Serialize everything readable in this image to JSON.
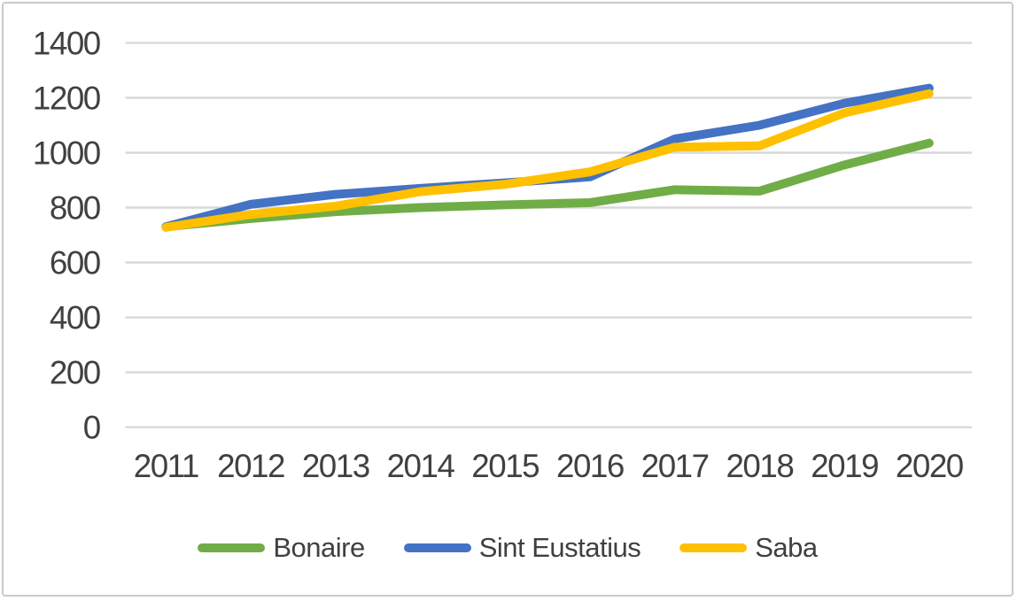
{
  "chart_data": {
    "type": "line",
    "title": "",
    "xlabel": "",
    "ylabel": "",
    "categories": [
      "2011",
      "2012",
      "2013",
      "2014",
      "2015",
      "2016",
      "2017",
      "2018",
      "2019",
      "2020"
    ],
    "series": [
      {
        "name": "Bonaire",
        "color": "#70AD47",
        "values": [
          730,
          760,
          785,
          800,
          810,
          818,
          865,
          860,
          955,
          1035
        ]
      },
      {
        "name": "Sint Eustatius",
        "color": "#4472C4",
        "values": [
          730,
          812,
          848,
          870,
          890,
          912,
          1050,
          1100,
          1180,
          1235
        ]
      },
      {
        "name": "Saba",
        "color": "#FFC000",
        "values": [
          728,
          775,
          805,
          858,
          885,
          930,
          1020,
          1025,
          1145,
          1215
        ]
      }
    ],
    "y_ticks": [
      0,
      200,
      400,
      600,
      800,
      1000,
      1200,
      1400
    ],
    "ylim": [
      0,
      1400
    ],
    "grid": true,
    "legend_position": "bottom"
  },
  "colors": {
    "gridline": "#D9D9D9",
    "axis_text": "#404040",
    "frame_border": "#C9C9C9",
    "background": "#FFFFFF"
  }
}
